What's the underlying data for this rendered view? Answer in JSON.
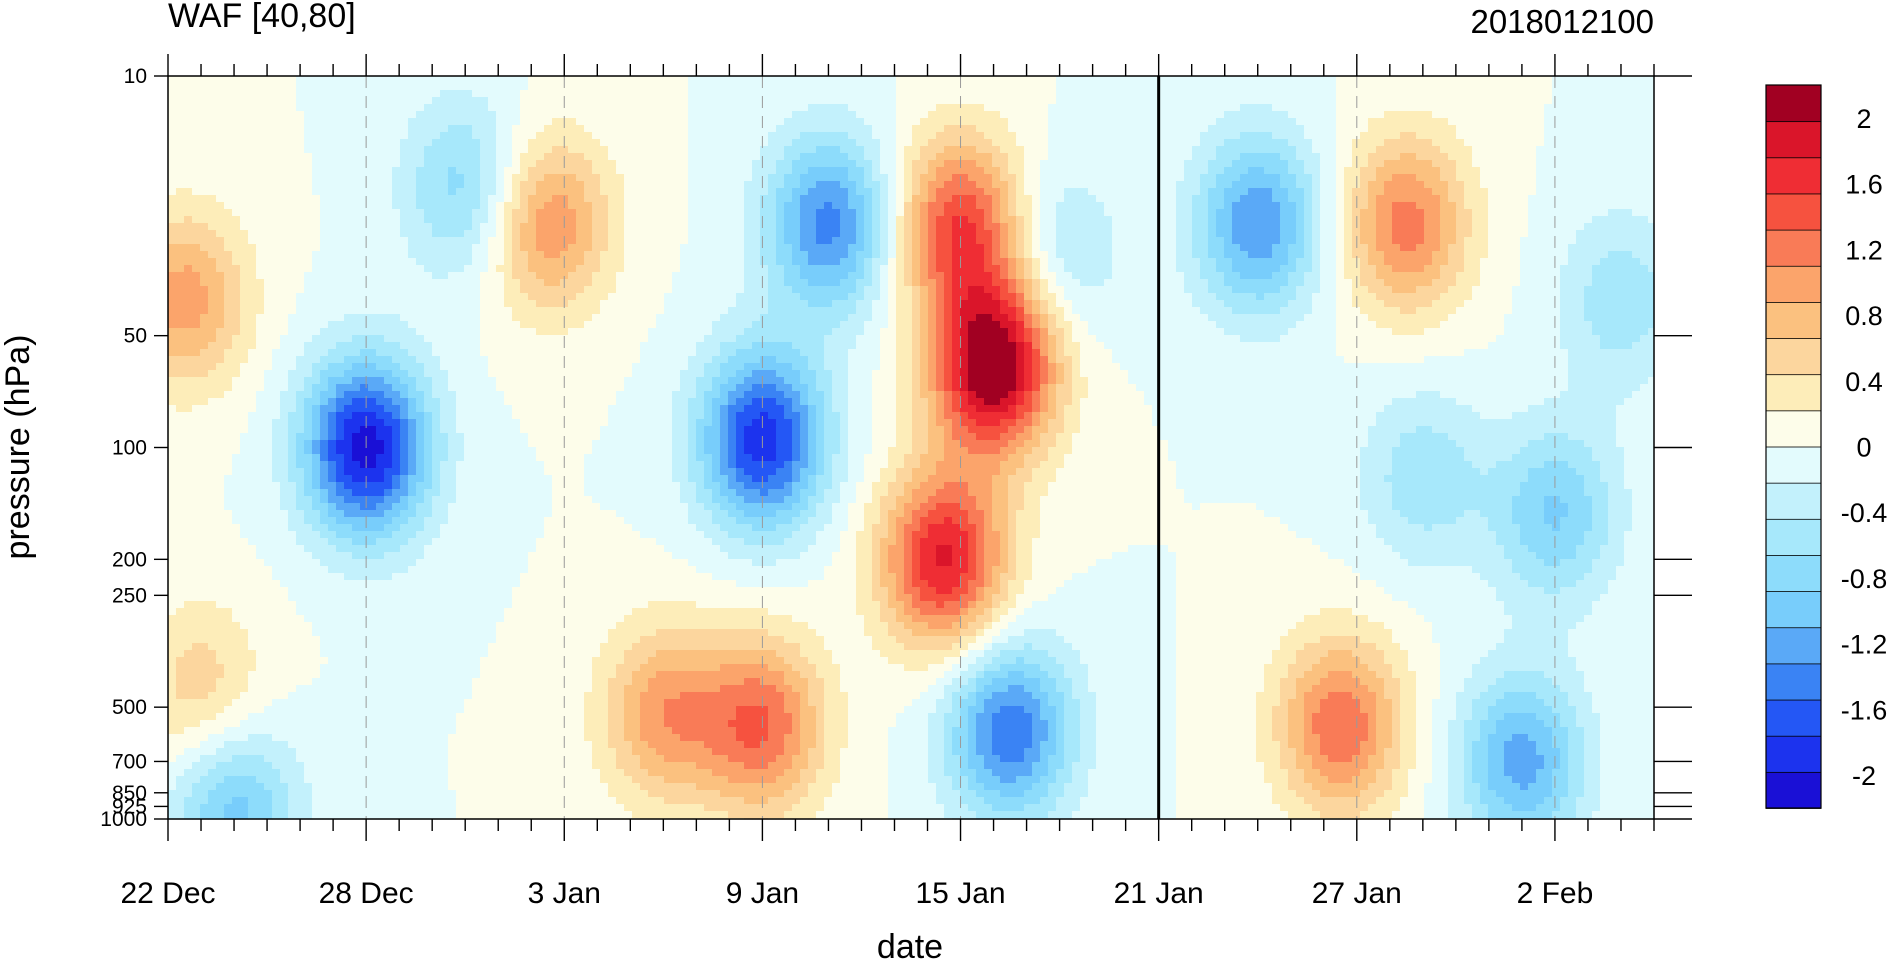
{
  "chart_data": {
    "type": "heatmap",
    "title": "WAF [40,80]",
    "subtitle": "2018012100",
    "xlabel": "date",
    "ylabel": "pressure (hPa)",
    "x_ticks": [
      "22 Dec",
      "28 Dec",
      "3 Jan",
      "9 Jan",
      "15 Jan",
      "21 Jan",
      "27 Jan",
      "2 Feb"
    ],
    "x_tick_days": [
      0,
      6,
      12,
      18,
      24,
      30,
      36,
      42
    ],
    "x_range_days": [
      0,
      45
    ],
    "y_ticks": [
      "10",
      "50",
      "100",
      "200",
      "250",
      "500",
      "700",
      "850",
      "925",
      "1000"
    ],
    "y_tick_values": [
      10,
      50,
      100,
      200,
      250,
      500,
      700,
      850,
      925,
      1000
    ],
    "y_range": [
      1000,
      10
    ],
    "y_scale": "log",
    "marker_line_day": 30,
    "colorbar": {
      "labels": [
        "2",
        "1.6",
        "1.2",
        "0.8",
        "0.4",
        "0",
        "-0.4",
        "-0.8",
        "-1.2",
        "-1.6",
        "-2"
      ],
      "label_values": [
        2,
        1.6,
        1.2,
        0.8,
        0.4,
        0,
        -0.4,
        -0.8,
        -1.2,
        -1.6,
        -2
      ],
      "range": [
        -2.2,
        2.2
      ],
      "colors": [
        "#1a10d6",
        "#1c33ee",
        "#2457f5",
        "#3a83f4",
        "#5aa9f7",
        "#78cdfb",
        "#8ddcfb",
        "#a7e8fb",
        "#c3f1fc",
        "#e3fbfd",
        "#fdfdea",
        "#fdedb9",
        "#fcd69e",
        "#fbc17f",
        "#fba46b",
        "#f97b57",
        "#f6523f",
        "#ef2d34",
        "#da152a",
        "#a10022"
      ]
    },
    "anomalies": [
      {
        "day": 18,
        "p": 95,
        "amp": -1.9
      },
      {
        "day": 11.5,
        "p": 25,
        "amp": 1.1
      },
      {
        "day": 6,
        "p": 100,
        "amp": -2.1
      },
      {
        "day": 20,
        "p": 25,
        "amp": -1.4
      },
      {
        "day": 9,
        "p": 20,
        "amp": -0.8
      },
      {
        "day": 23.5,
        "p": 200,
        "amp": 1.8
      },
      {
        "day": 25,
        "p": 60,
        "amp": 2.3
      },
      {
        "day": 24,
        "p": 25,
        "amp": 1.5
      },
      {
        "day": 15,
        "p": 520,
        "amp": 1.0
      },
      {
        "day": 18,
        "p": 560,
        "amp": 1.3
      },
      {
        "day": 25.5,
        "p": 580,
        "amp": -1.5
      },
      {
        "day": 1,
        "p": 450,
        "amp": 0.6
      },
      {
        "day": 0.5,
        "p": 40,
        "amp": 1.0
      },
      {
        "day": 33,
        "p": 25,
        "amp": -1.3
      },
      {
        "day": 37.5,
        "p": 25,
        "amp": 1.2
      },
      {
        "day": 35.5,
        "p": 560,
        "amp": 1.3
      },
      {
        "day": 41,
        "p": 700,
        "amp": -1.2
      },
      {
        "day": 42,
        "p": 150,
        "amp": -0.9
      },
      {
        "day": 38,
        "p": 120,
        "amp": -0.6
      },
      {
        "day": 44,
        "p": 40,
        "amp": -0.6
      },
      {
        "day": 2,
        "p": 950,
        "amp": -1.0
      },
      {
        "day": 27,
        "p": 30,
        "amp": -0.5
      }
    ]
  }
}
